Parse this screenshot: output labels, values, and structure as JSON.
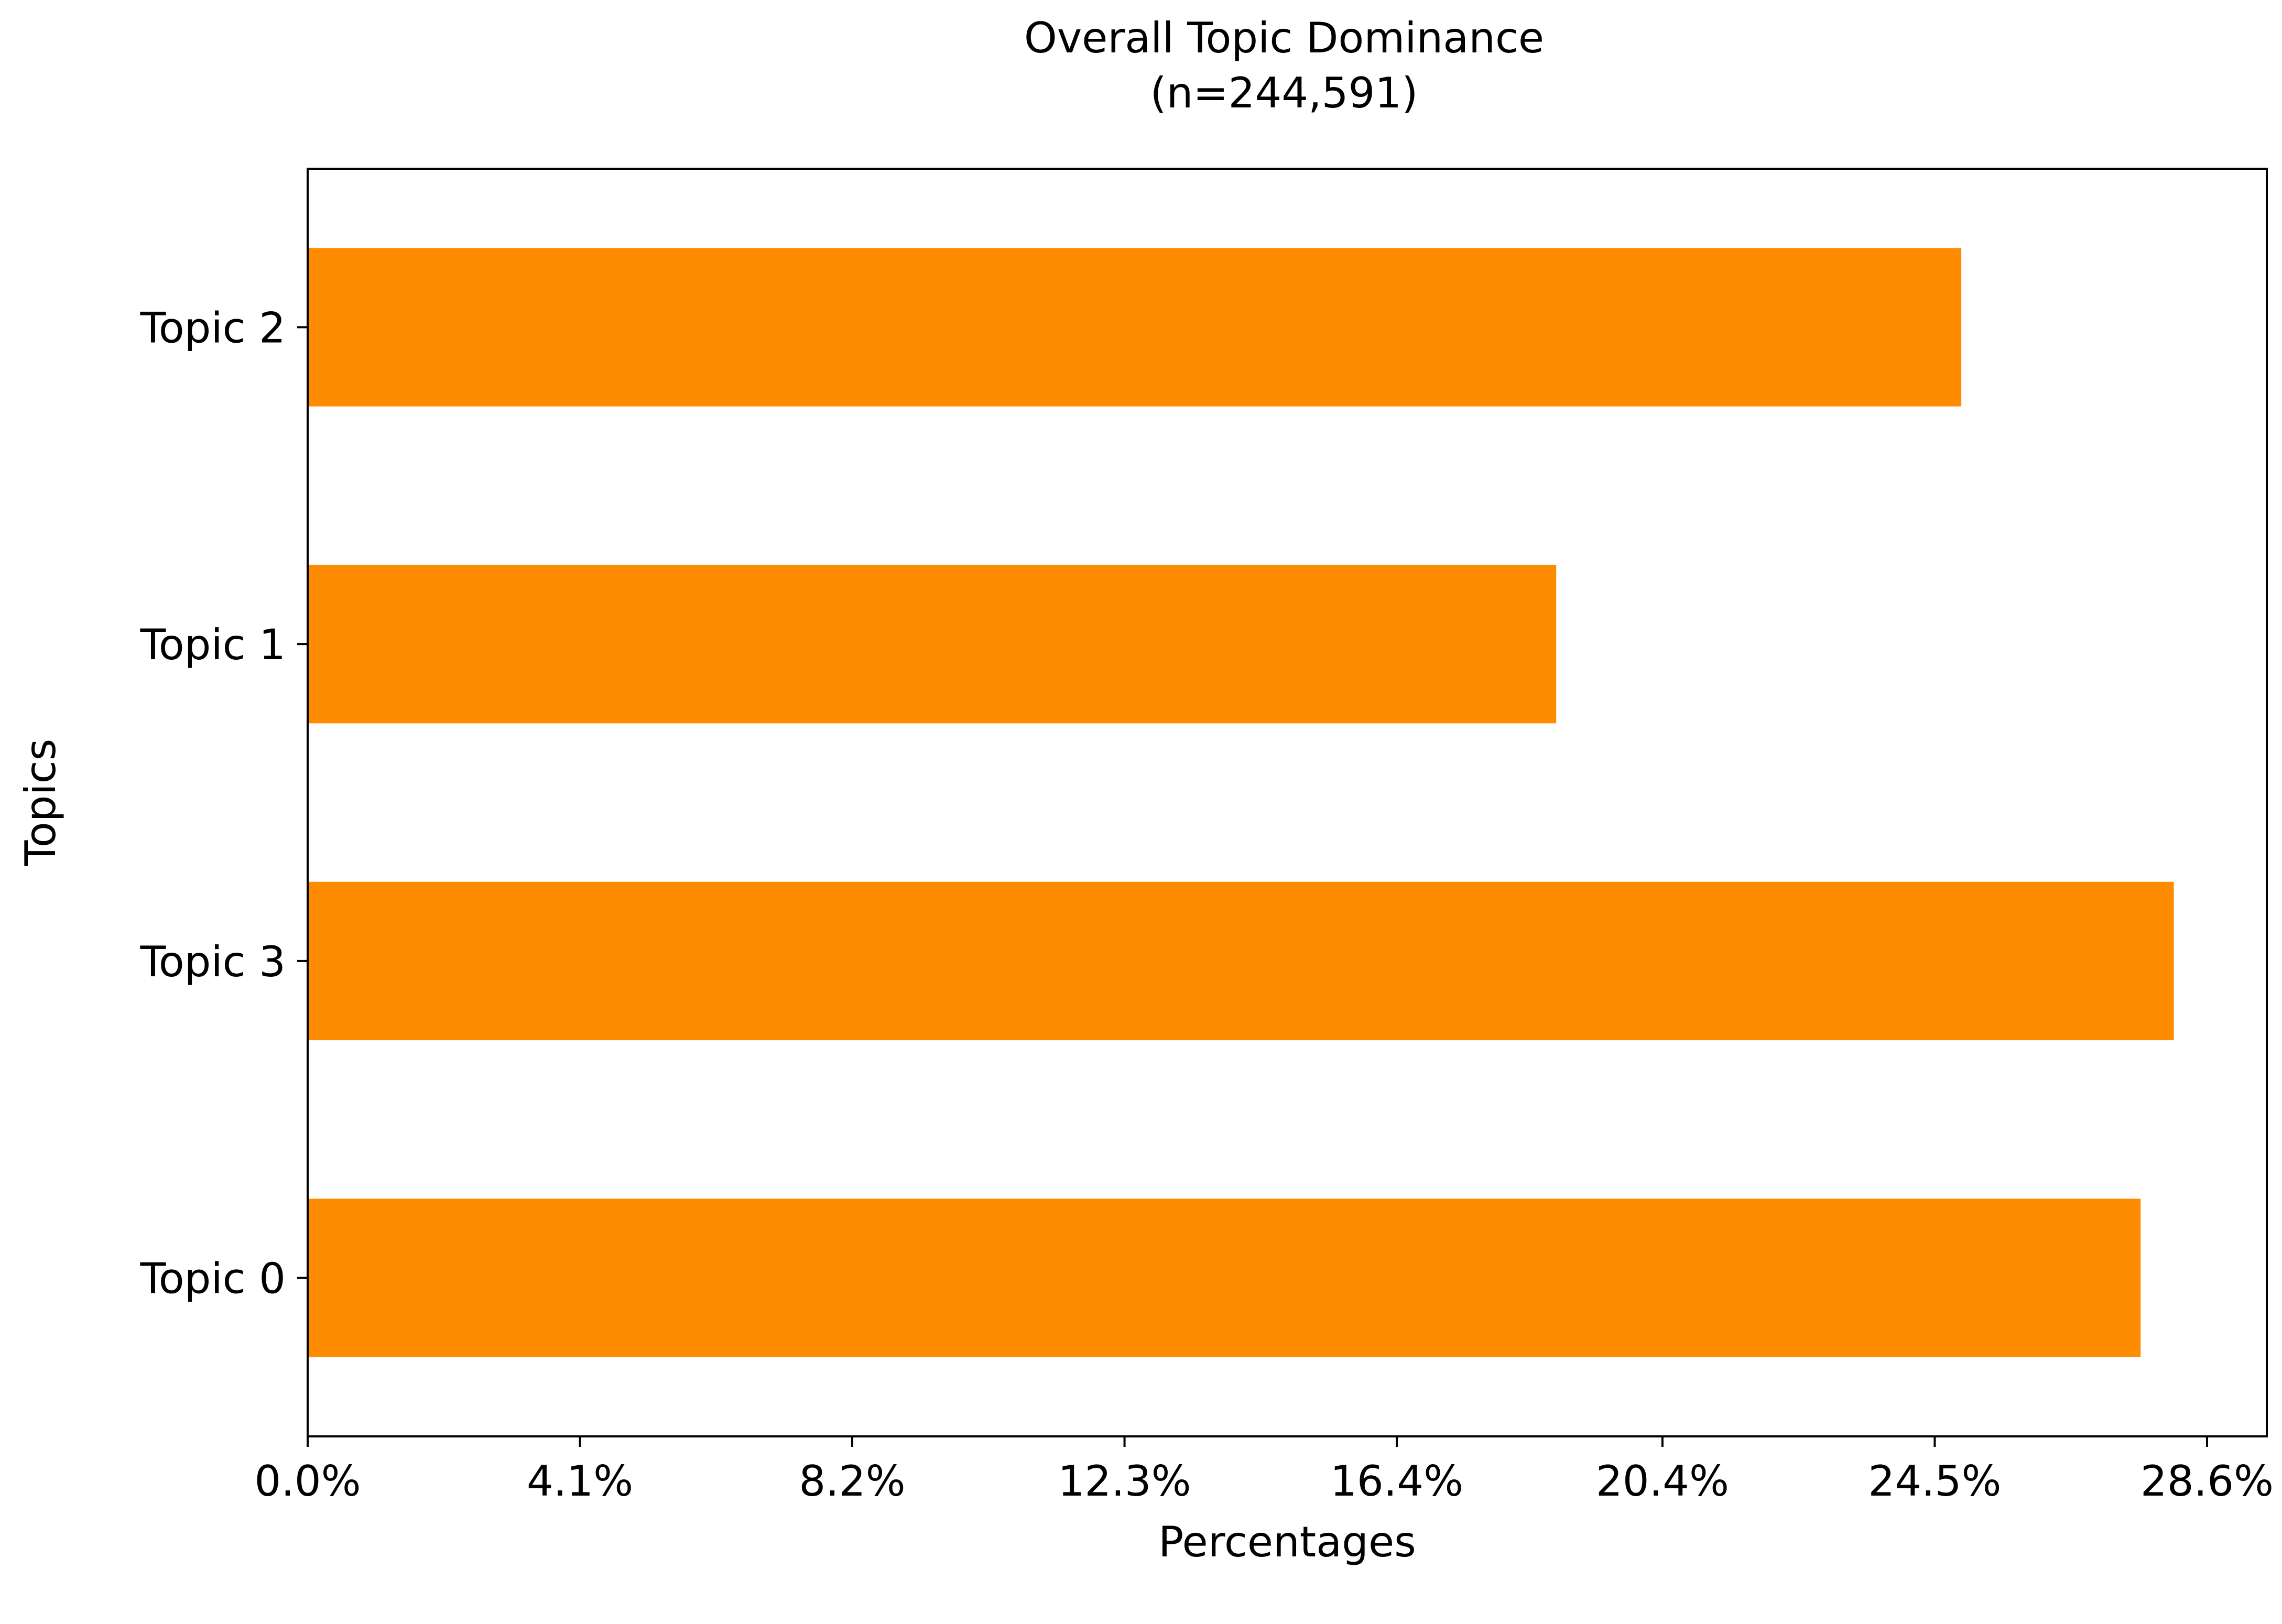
{
  "chart_data": {
    "type": "bar",
    "orientation": "horizontal",
    "title": "Overall Topic Dominance",
    "subtitle": "(n=244,591)",
    "xlabel": "Percentages",
    "ylabel": "Topics",
    "categories": [
      "Topic 2",
      "Topic 1",
      "Topic 3",
      "Topic 0"
    ],
    "values": [
      24.9,
      18.8,
      28.1,
      27.6
    ],
    "xlim": [
      0,
      29.5
    ],
    "xticks": [
      0.0,
      4.1,
      8.2,
      12.3,
      16.4,
      20.4,
      24.5,
      28.6
    ],
    "xtick_labels": [
      "0.0%",
      "4.1%",
      "8.2%",
      "12.3%",
      "16.4%",
      "20.4%",
      "24.5%",
      "28.6%"
    ],
    "bar_color": "#ff8c00",
    "grid": false,
    "legend": "none"
  }
}
